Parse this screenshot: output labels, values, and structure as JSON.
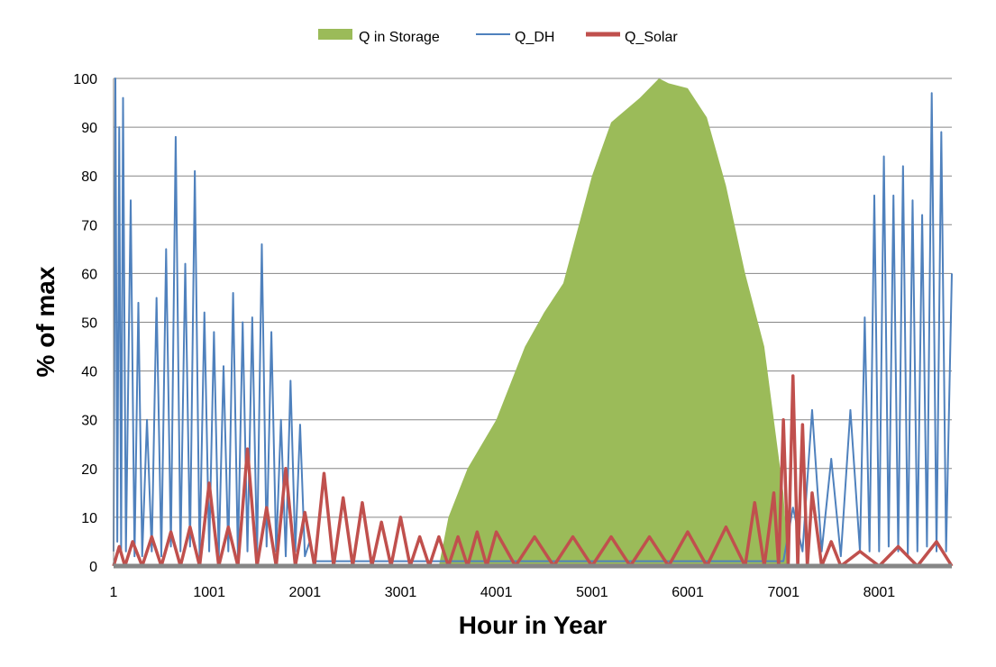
{
  "chart_data": {
    "type": "area",
    "title": "",
    "xlabel": "Hour in Year",
    "ylabel": "% of max",
    "xlim": [
      1,
      8760
    ],
    "ylim": [
      0,
      100
    ],
    "x_ticks": [
      1,
      1001,
      2001,
      3001,
      4001,
      5001,
      6001,
      7001,
      8001
    ],
    "x_tick_labels": [
      "1",
      "1001",
      "2001",
      "3001",
      "4001",
      "5001",
      "6001",
      "7001",
      "8001"
    ],
    "y_ticks": [
      0,
      10,
      20,
      30,
      40,
      50,
      60,
      70,
      80,
      90,
      100
    ],
    "y_tick_labels": [
      "0",
      "10",
      "20",
      "30",
      "40",
      "50",
      "60",
      "70",
      "80",
      "90",
      "100"
    ],
    "grid": "horizontal",
    "legend_position": "top",
    "series": [
      {
        "name": "Q in Storage",
        "type": "area",
        "color": "#9BBB59",
        "x": [
          1,
          3400,
          3500,
          3700,
          4000,
          4300,
          4500,
          4700,
          5000,
          5200,
          5500,
          5700,
          5800,
          6000,
          6200,
          6400,
          6600,
          6800,
          6900,
          7000,
          7050,
          8760
        ],
        "values": [
          0,
          0,
          10,
          20,
          30,
          45,
          52,
          58,
          80,
          91,
          96,
          100,
          99,
          98,
          92,
          78,
          60,
          45,
          30,
          15,
          0,
          0
        ]
      },
      {
        "name": "Q_DH",
        "type": "line",
        "color": "#4F81BD",
        "x": [
          1,
          20,
          40,
          60,
          80,
          100,
          130,
          180,
          220,
          260,
          300,
          350,
          400,
          450,
          500,
          550,
          600,
          650,
          700,
          750,
          800,
          850,
          900,
          950,
          1000,
          1050,
          1100,
          1150,
          1200,
          1250,
          1300,
          1350,
          1400,
          1450,
          1500,
          1550,
          1600,
          1650,
          1700,
          1750,
          1800,
          1850,
          1900,
          1950,
          2000,
          2050,
          2100,
          2500,
          3000,
          3500,
          4000,
          4500,
          5000,
          5500,
          6000,
          6500,
          7000,
          7100,
          7200,
          7300,
          7400,
          7500,
          7600,
          7700,
          7800,
          7850,
          7900,
          7950,
          8000,
          8050,
          8100,
          8150,
          8200,
          8250,
          8300,
          8350,
          8400,
          8450,
          8500,
          8550,
          8600,
          8650,
          8700,
          8760
        ],
        "values": [
          3,
          100,
          5,
          90,
          3,
          96,
          3,
          75,
          2,
          54,
          2,
          30,
          3,
          55,
          2,
          65,
          4,
          88,
          3,
          62,
          4,
          81,
          2,
          52,
          3,
          48,
          2,
          41,
          3,
          56,
          2,
          50,
          3,
          51,
          2,
          66,
          4,
          48,
          3,
          30,
          2,
          38,
          3,
          29,
          2,
          5,
          1,
          1,
          1,
          1,
          1,
          1,
          1,
          1,
          1,
          1,
          1,
          12,
          3,
          32,
          3,
          22,
          2,
          32,
          3,
          51,
          3,
          76,
          3,
          84,
          4,
          76,
          3,
          82,
          2,
          75,
          3,
          72,
          4,
          97,
          3,
          89,
          3,
          60
        ]
      },
      {
        "name": "Q_Solar",
        "type": "line",
        "color": "#C0504D",
        "x": [
          1,
          60,
          120,
          200,
          300,
          400,
          500,
          600,
          700,
          800,
          900,
          1000,
          1100,
          1200,
          1300,
          1400,
          1500,
          1600,
          1700,
          1800,
          1900,
          2000,
          2100,
          2200,
          2300,
          2400,
          2500,
          2600,
          2700,
          2800,
          2900,
          3000,
          3100,
          3200,
          3300,
          3400,
          3500,
          3600,
          3700,
          3800,
          3900,
          4000,
          4200,
          4400,
          4600,
          4800,
          5000,
          5200,
          5400,
          5600,
          5800,
          6000,
          6200,
          6400,
          6600,
          6700,
          6800,
          6900,
          6950,
          7000,
          7050,
          7100,
          7150,
          7200,
          7250,
          7300,
          7400,
          7500,
          7600,
          7800,
          8000,
          8200,
          8400,
          8600,
          8760
        ],
        "values": [
          0,
          4,
          0,
          5,
          0,
          6,
          0,
          7,
          0,
          8,
          0,
          17,
          0,
          8,
          0,
          24,
          0,
          12,
          0,
          20,
          0,
          11,
          0,
          19,
          0,
          14,
          0,
          13,
          0,
          9,
          0,
          10,
          0,
          6,
          0,
          6,
          0,
          6,
          0,
          7,
          0,
          7,
          0,
          6,
          0,
          6,
          0,
          6,
          0,
          6,
          0,
          7,
          0,
          8,
          0,
          13,
          0,
          15,
          0,
          30,
          0,
          39,
          0,
          29,
          0,
          15,
          0,
          5,
          0,
          3,
          0,
          4,
          0,
          5,
          0
        ]
      }
    ]
  }
}
